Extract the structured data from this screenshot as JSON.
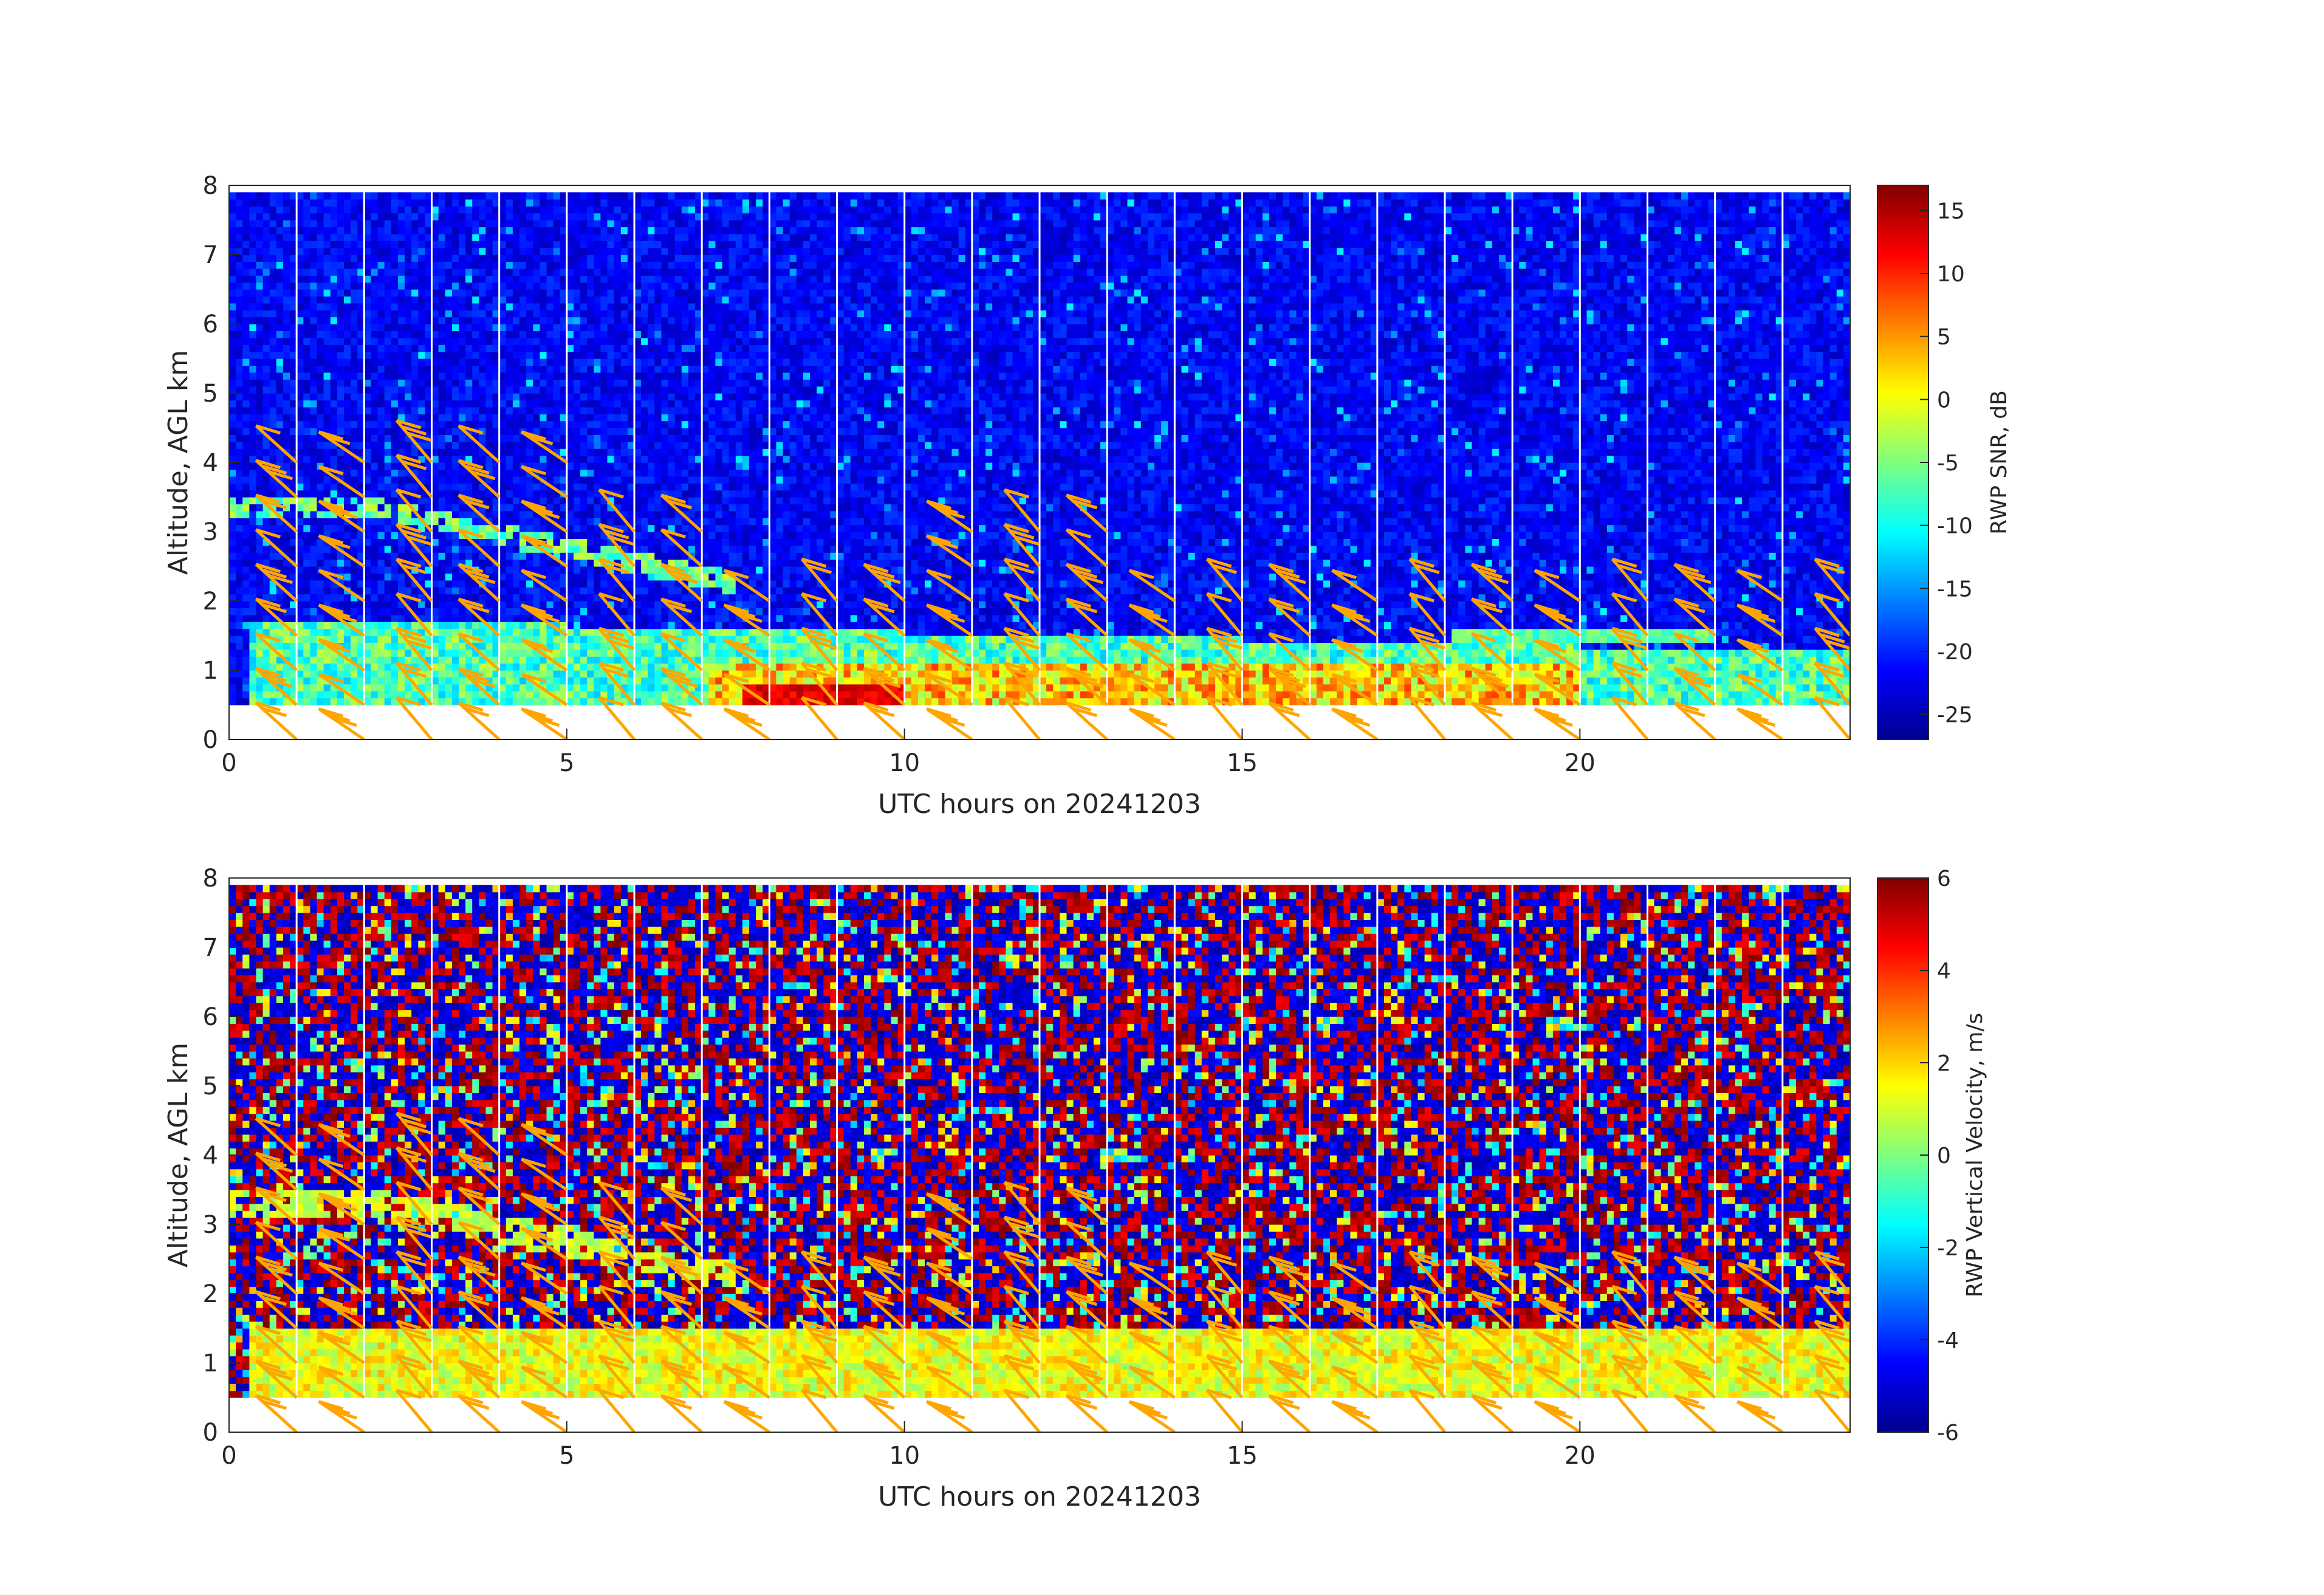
{
  "chart_data": [
    {
      "type": "heatmap",
      "title": "",
      "xlabel": "UTC hours on 20241203",
      "ylabel": "Altitude, AGL km",
      "xlim": [
        0,
        24
      ],
      "ylim": [
        0,
        8
      ],
      "xticks": [
        0,
        5,
        10,
        15,
        20
      ],
      "yticks": [
        0,
        1,
        2,
        3,
        4,
        5,
        6,
        7,
        8
      ],
      "data_altitude_range_km": [
        0.5,
        7.9
      ],
      "colorbar": {
        "label": "RWP SNR, dB",
        "range": [
          -27,
          17
        ],
        "ticks": [
          -25,
          -20,
          -15,
          -10,
          -5,
          0,
          5,
          10,
          15
        ],
        "colormap": "jet"
      },
      "overlay": "wind barbs (orange)",
      "barb_color": "#ffa500",
      "grid": false
    },
    {
      "type": "heatmap",
      "title": "",
      "xlabel": "UTC hours on 20241203",
      "ylabel": "Altitude, AGL km",
      "xlim": [
        0,
        24
      ],
      "ylim": [
        0,
        8
      ],
      "xticks": [
        0,
        5,
        10,
        15,
        20
      ],
      "yticks": [
        0,
        1,
        2,
        3,
        4,
        5,
        6,
        7,
        8
      ],
      "data_altitude_range_km": [
        0.5,
        7.9
      ],
      "colorbar": {
        "label": "RWP Vertical Velocity, m/s",
        "range": [
          -6,
          6
        ],
        "ticks": [
          -6,
          -4,
          -2,
          0,
          2,
          4,
          6
        ],
        "colormap": "jet"
      },
      "overlay": "wind barbs (orange)",
      "barb_color": "#ffa500",
      "grid": false
    }
  ]
}
